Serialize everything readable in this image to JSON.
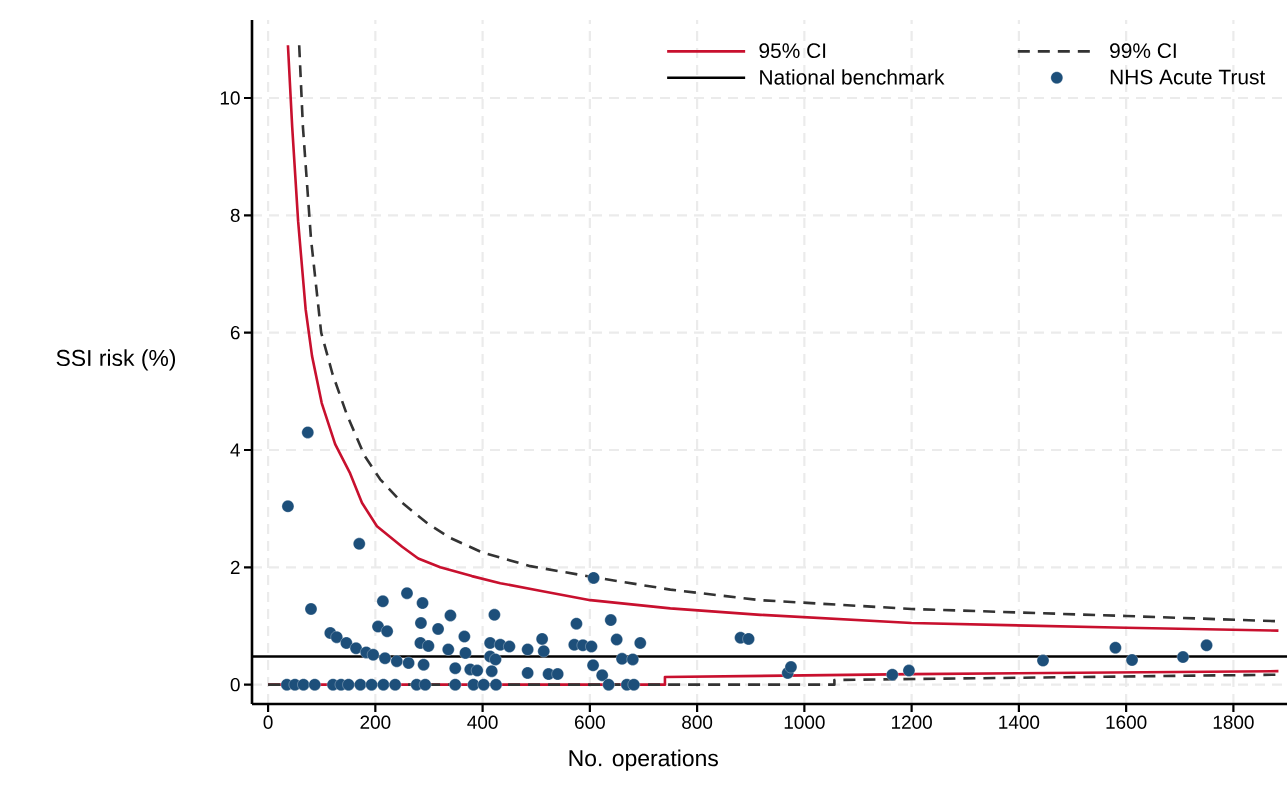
{
  "chart_data": {
    "type": "line",
    "xlabel": "No. operations",
    "ylabel": "SSI risk (%)",
    "xlim": [
      -30,
      1900
    ],
    "ylim": [
      -0.33,
      11.33
    ],
    "xticks": [
      0,
      200,
      400,
      600,
      800,
      1000,
      1200,
      1400,
      1600,
      1800
    ],
    "yticks": [
      0,
      2,
      4,
      6,
      8,
      10
    ],
    "grid": true,
    "legend": "top right",
    "series": [
      {
        "name": "95% CI",
        "color": "#c8102e",
        "line_style": "solid",
        "x": [
          37,
          45,
          56,
          70,
          82,
          100,
          125,
          153,
          175,
          203,
          250,
          280,
          321,
          380,
          433,
          507,
          601,
          750,
          918,
          1200,
          1600,
          1884
        ],
        "values": [
          10.9,
          9.5,
          7.9,
          6.4,
          5.6,
          4.8,
          4.1,
          3.6,
          3.1,
          2.7,
          2.35,
          2.15,
          2.0,
          1.85,
          1.73,
          1.6,
          1.44,
          1.3,
          1.19,
          1.05,
          0.97,
          0.92
        ]
      },
      {
        "name": "99% CI",
        "color": "#333333",
        "line_style": "dashed",
        "x": [
          58,
          65,
          80,
          99,
          120,
          147,
          180,
          209,
          250,
          297,
          340,
          400,
          489,
          601,
          750,
          918,
          1200,
          1600,
          1884
        ],
        "values": [
          10.9,
          9.5,
          7.6,
          6.0,
          5.3,
          4.6,
          3.9,
          3.5,
          3.1,
          2.75,
          2.5,
          2.25,
          2.02,
          1.84,
          1.62,
          1.44,
          1.29,
          1.17,
          1.08
        ]
      },
      {
        "name": "NHS Acute Trust",
        "type": "scatter",
        "color": "#1d4f7a",
        "marker": "circle",
        "x": [
          74,
          37,
          170,
          80,
          214,
          259,
          288,
          340,
          422,
          285,
          317,
          366,
          205,
          222,
          116,
          128,
          146,
          164,
          183,
          196,
          218,
          240,
          262,
          284,
          299,
          290,
          336,
          368,
          349,
          377,
          390,
          414,
          433,
          450,
          484,
          414,
          424,
          417,
          484,
          35,
          50,
          66,
          87,
          121,
          136,
          150,
          172,
          193,
          215,
          237,
          277,
          293,
          349,
          383,
          402,
          425,
          607,
          575,
          639,
          511,
          514,
          571,
          587,
          603,
          650,
          694,
          660,
          680,
          606,
          623,
          523,
          540,
          635,
          669,
          682,
          881,
          896,
          969,
          975,
          1164,
          1195,
          1445,
          1580,
          1611,
          1706,
          1750
        ],
        "values": [
          4.3,
          3.04,
          2.4,
          1.29,
          1.42,
          1.56,
          1.39,
          1.18,
          1.19,
          1.05,
          0.95,
          0.82,
          0.99,
          0.91,
          0.88,
          0.81,
          0.71,
          0.62,
          0.55,
          0.51,
          0.45,
          0.4,
          0.37,
          0.71,
          0.66,
          0.34,
          0.6,
          0.54,
          0.28,
          0.26,
          0.24,
          0.71,
          0.68,
          0.65,
          0.6,
          0.48,
          0.43,
          0.23,
          0.2,
          0,
          0,
          0,
          0,
          0,
          0,
          0,
          0,
          0,
          0,
          0,
          0,
          0,
          0,
          0,
          0,
          0,
          1.82,
          1.04,
          1.1,
          0.78,
          0.57,
          0.68,
          0.67,
          0.65,
          0.77,
          0.71,
          0.44,
          0.43,
          0.33,
          0.16,
          0.18,
          0.18,
          0,
          0,
          0,
          0.8,
          0.78,
          0.2,
          0.3,
          0.17,
          0.24,
          0.41,
          0.63,
          0.42,
          0.47,
          0.67
        ]
      },
      {
        "color": "#c8102e",
        "line_style": "solid",
        "x": [
          0,
          740,
          740,
          1200,
          1884
        ],
        "values": [
          0,
          0,
          0.13,
          0.18,
          0.23
        ]
      },
      {
        "color": "#333333",
        "line_style": "dashed",
        "x": [
          0,
          1056,
          1056,
          1884
        ],
        "values": [
          0,
          0,
          0.08,
          0.17
        ]
      }
    ],
    "ref_lines": [
      {
        "axis": "y",
        "value": 0.48,
        "label": "National benchmark",
        "color": "#000000",
        "line_style": "solid"
      }
    ]
  }
}
